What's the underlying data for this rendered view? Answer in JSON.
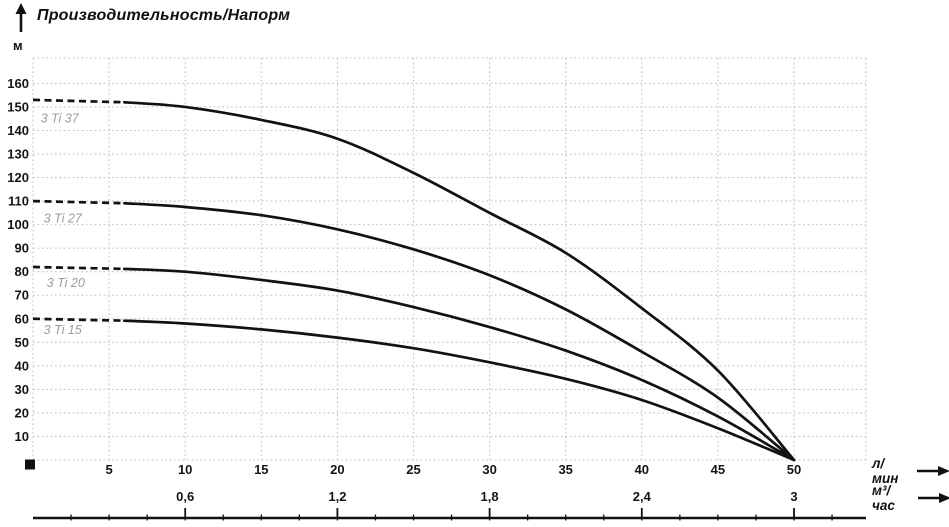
{
  "header": {
    "title": "Производительность/Напорм"
  },
  "chart_data": {
    "type": "line",
    "title": "Производительность/Напорм",
    "ylabel": "м",
    "xlabel": "л/мин",
    "xlabel2": "м³/час",
    "x": [
      0,
      5,
      10,
      15,
      20,
      25,
      30,
      35,
      40,
      45,
      50
    ],
    "series": [
      {
        "name": "3 Ti 37",
        "values": [
          153,
          152.5,
          150,
          144.5,
          136.5,
          122,
          105,
          88,
          64.5,
          38,
          0
        ]
      },
      {
        "name": "3 Ti 27",
        "values": [
          110,
          109.5,
          107.5,
          104,
          98,
          89.5,
          78.5,
          64,
          46,
          26.5,
          0
        ]
      },
      {
        "name": "3 Ti 20",
        "values": [
          82,
          81.5,
          80,
          76.5,
          72,
          65,
          56.5,
          46.5,
          34,
          18.5,
          0
        ]
      },
      {
        "name": "3 Ti 15",
        "values": [
          60,
          59.5,
          58,
          55.5,
          52,
          47.5,
          41.5,
          34.5,
          25.5,
          13.5,
          0
        ]
      }
    ],
    "dash_until_x": 6,
    "annotations": [
      {
        "text": "3 Ti 37",
        "x": 0.5,
        "y": 143.5
      },
      {
        "text": "3 Ti 27",
        "x": 0.7,
        "y": 101
      },
      {
        "text": "3 Ti 20",
        "x": 0.9,
        "y": 73.5
      },
      {
        "text": "3 Ti 15",
        "x": 0.7,
        "y": 53.5
      }
    ],
    "x_ticks": [
      5,
      10,
      15,
      20,
      25,
      30,
      35,
      40,
      45,
      50
    ],
    "y_ticks": [
      10,
      20,
      30,
      40,
      50,
      60,
      70,
      80,
      90,
      100,
      110,
      120,
      130,
      140,
      150,
      160
    ],
    "x2_ticks": [
      {
        "x_lmin": 10,
        "label": "0,6"
      },
      {
        "x_lmin": 20,
        "label": "1,2"
      },
      {
        "x_lmin": 30,
        "label": "1,8"
      },
      {
        "x_lmin": 40,
        "label": "2,4"
      },
      {
        "x_lmin": 50,
        "label": "3"
      }
    ],
    "x2_minor_step_lmin": 2.5,
    "xlim": [
      0,
      54.7
    ],
    "ylim": [
      0,
      170.8
    ],
    "grid": true,
    "legend_position": "inline-labels",
    "origin_marker": true,
    "colors": {
      "curve": "#121212",
      "grid": "#c6c6c6",
      "tick_text": "#151515",
      "series_label": "#9b9b9b",
      "axis_line": "#121212"
    }
  }
}
